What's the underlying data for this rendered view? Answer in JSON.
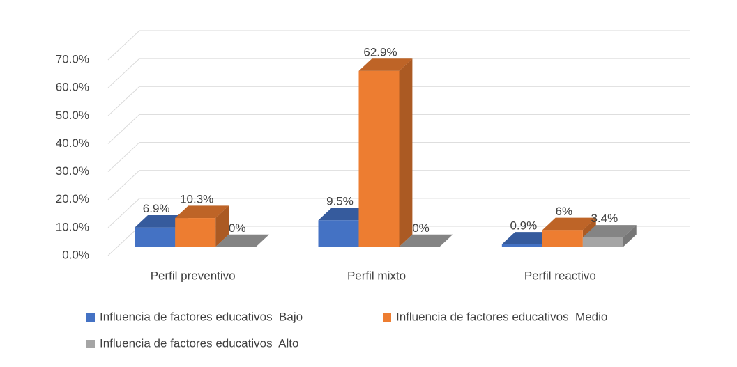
{
  "chart_data": {
    "type": "bar3d",
    "categories": [
      "Perfil preventivo",
      "Perfil mixto",
      "Perfil reactivo"
    ],
    "series": [
      {
        "name": "Influencia de factores educativos  Bajo",
        "color": "#4472c4",
        "values": [
          6.9,
          9.5,
          0.9
        ],
        "value_labels": [
          "6.9%",
          "9.5%",
          "0.9%"
        ]
      },
      {
        "name": "Influencia de factores educativos  Medio",
        "color": "#ed7d31",
        "values": [
          10.3,
          62.9,
          6
        ],
        "value_labels": [
          "10.3%",
          "62.9%",
          "6%"
        ]
      },
      {
        "name": "Influencia de factores educativos  Alto",
        "color": "#a5a5a5",
        "values": [
          0,
          0,
          3.4
        ],
        "value_labels": [
          "0%",
          "0%",
          "3.4%"
        ]
      }
    ],
    "ylim": [
      0,
      70
    ],
    "yticks": [
      {
        "value": 0,
        "label": "0.0%"
      },
      {
        "value": 10,
        "label": "10.0%"
      },
      {
        "value": 20,
        "label": "20.0%"
      },
      {
        "value": 30,
        "label": "30.0%"
      },
      {
        "value": 40,
        "label": "40.0%"
      },
      {
        "value": 50,
        "label": "50.0%"
      },
      {
        "value": 60,
        "label": "60.0%"
      },
      {
        "value": 70,
        "label": "70.0%"
      }
    ],
    "grid": true,
    "legend": "bottom"
  }
}
